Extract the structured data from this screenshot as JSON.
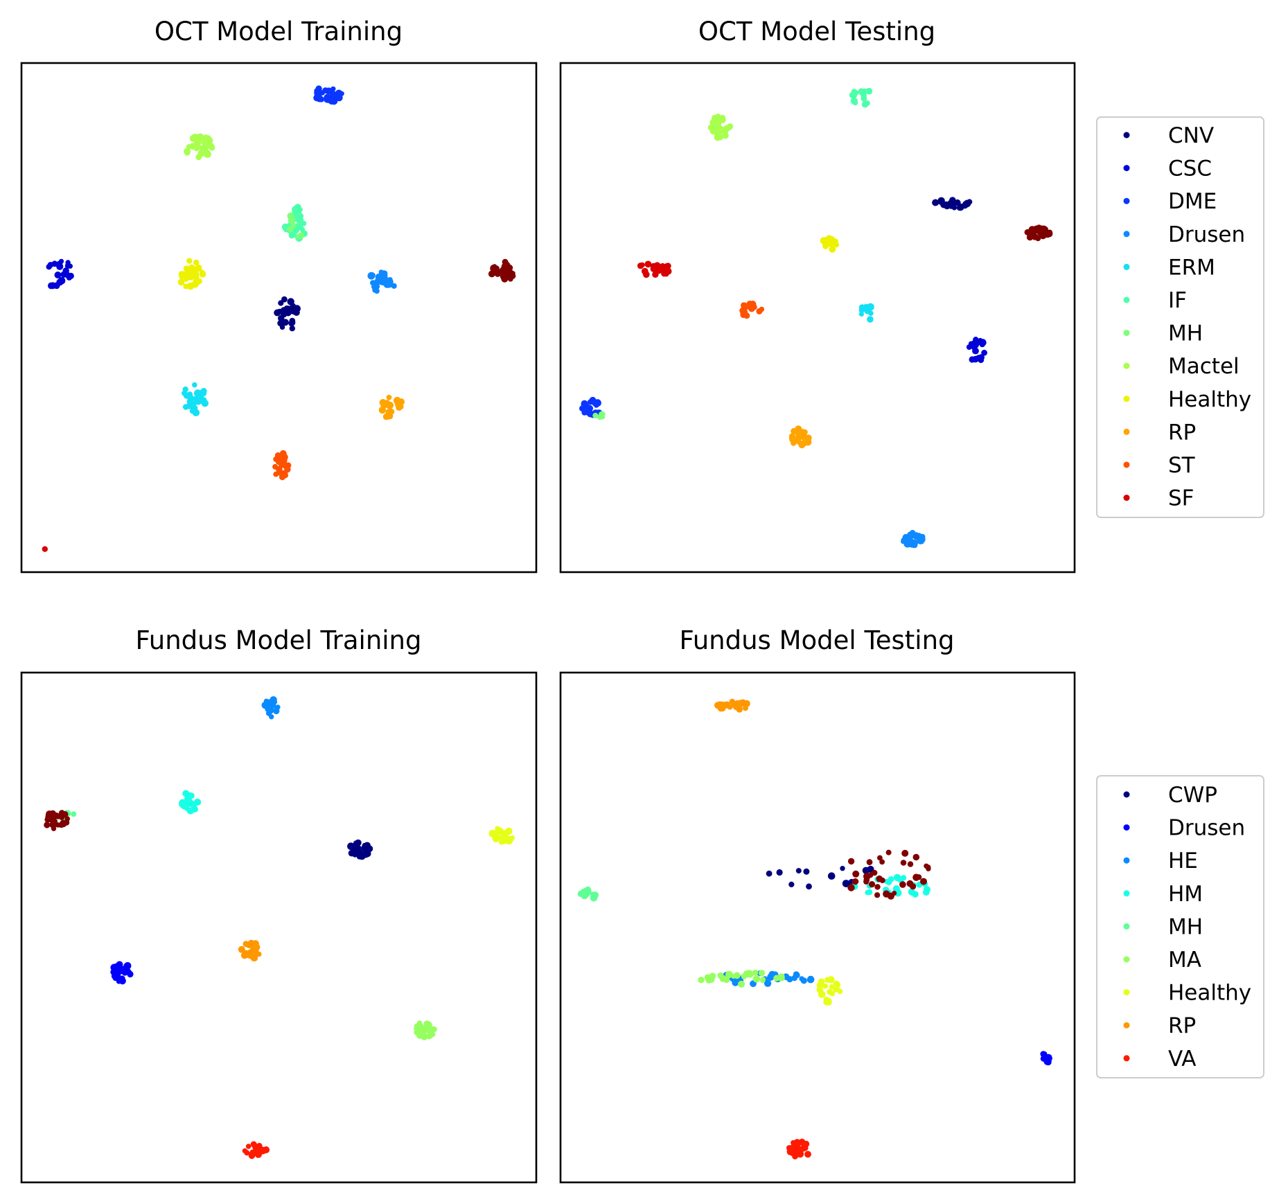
{
  "chart_data": [
    {
      "type": "scatter",
      "title": "OCT Model Training",
      "grid": false,
      "xlim": [
        0,
        100
      ],
      "ylim": [
        0,
        100
      ],
      "legend": "none",
      "clusters": [
        {
          "label": "CNV",
          "color": "#00007f",
          "center": [
            51.5,
            50.5
          ],
          "spread": [
            2.2,
            3.2
          ],
          "n": 26
        },
        {
          "label": "CSC",
          "color": "#0000d8",
          "center": [
            7.5,
            58.5
          ],
          "spread": [
            2.6,
            3.0
          ],
          "n": 24
        },
        {
          "label": "DME",
          "color": "#0a36ff",
          "center": [
            59.5,
            94.0
          ],
          "spread": [
            2.8,
            1.8
          ],
          "n": 26
        },
        {
          "label": "Drusen",
          "color": "#0f89ff",
          "center": [
            70.0,
            57.0
          ],
          "spread": [
            2.6,
            2.0
          ],
          "n": 24
        },
        {
          "label": "ERM",
          "color": "#14e0f5",
          "center": [
            33.5,
            34.0
          ],
          "spread": [
            2.4,
            2.8
          ],
          "n": 30
        },
        {
          "label": "IF",
          "color": "#4dffaa",
          "center": [
            53.5,
            68.5
          ],
          "spread": [
            2.4,
            3.4
          ],
          "n": 30
        },
        {
          "label": "MH",
          "color": "#7dff7a",
          "center": [
            53.5,
            68.5
          ],
          "spread": [
            1.8,
            2.8
          ],
          "n": 6
        },
        {
          "label": "Mactel",
          "color": "#a8ff4d",
          "center": [
            34.5,
            83.5
          ],
          "spread": [
            2.8,
            2.2
          ],
          "n": 30
        },
        {
          "label": "Healthy",
          "color": "#ecf200",
          "center": [
            33.0,
            58.5
          ],
          "spread": [
            2.4,
            2.8
          ],
          "n": 26
        },
        {
          "label": "RP",
          "color": "#ffa400",
          "center": [
            72.0,
            32.5
          ],
          "spread": [
            2.0,
            2.4
          ],
          "n": 22
        },
        {
          "label": "ST",
          "color": "#ff5200",
          "center": [
            50.5,
            21.0
          ],
          "spread": [
            1.8,
            2.6
          ],
          "n": 20
        },
        {
          "label": "SF",
          "color": "#d80000",
          "center": [
            4.5,
            4.5
          ],
          "spread": [
            0.1,
            0.1
          ],
          "n": 1
        },
        {
          "label": "",
          "color": "#7f0000",
          "center": [
            93.5,
            59.0
          ],
          "spread": [
            2.2,
            2.0
          ],
          "n": 30
        }
      ]
    },
    {
      "type": "scatter",
      "title": "OCT Model Testing",
      "grid": false,
      "xlim": [
        0,
        100
      ],
      "ylim": [
        0,
        100
      ],
      "legend": "right",
      "clusters": [
        {
          "label": "CNV",
          "color": "#00007f",
          "center": [
            76.5,
            72.5
          ],
          "spread": [
            3.8,
            1.0
          ],
          "n": 18
        },
        {
          "label": "CSC",
          "color": "#0000d8",
          "center": [
            81.0,
            43.5
          ],
          "spread": [
            1.6,
            2.4
          ],
          "n": 22
        },
        {
          "label": "DME",
          "color": "#0a36ff",
          "center": [
            6.0,
            32.0
          ],
          "spread": [
            1.8,
            1.8
          ],
          "n": 20
        },
        {
          "label": "Drusen",
          "color": "#0f89ff",
          "center": [
            68.5,
            6.5
          ],
          "spread": [
            2.0,
            1.4
          ],
          "n": 26
        },
        {
          "label": "ERM",
          "color": "#14e0f5",
          "center": [
            59.5,
            51.5
          ],
          "spread": [
            1.2,
            2.6
          ],
          "n": 8
        },
        {
          "label": "IF",
          "color": "#4dffaa",
          "center": [
            58.5,
            93.5
          ],
          "spread": [
            1.8,
            2.0
          ],
          "n": 14
        },
        {
          "label": "MH",
          "color": "#7dff7a",
          "center": [
            7.5,
            30.5
          ],
          "spread": [
            0.8,
            0.8
          ],
          "n": 4
        },
        {
          "label": "Mactel",
          "color": "#a8ff4d",
          "center": [
            31.0,
            87.5
          ],
          "spread": [
            2.0,
            2.2
          ],
          "n": 26
        },
        {
          "label": "Healthy",
          "color": "#ecf200",
          "center": [
            52.5,
            64.5
          ],
          "spread": [
            1.4,
            1.6
          ],
          "n": 12
        },
        {
          "label": "RP",
          "color": "#ffa400",
          "center": [
            46.5,
            26.5
          ],
          "spread": [
            2.0,
            1.6
          ],
          "n": 26
        },
        {
          "label": "ST",
          "color": "#ff5200",
          "center": [
            37.0,
            51.5
          ],
          "spread": [
            2.2,
            1.4
          ],
          "n": 16
        },
        {
          "label": "SF",
          "color": "#d80000",
          "center": [
            18.0,
            59.5
          ],
          "spread": [
            3.6,
            1.2
          ],
          "n": 22
        },
        {
          "label": "",
          "color": "#7f0000",
          "center": [
            93.0,
            66.5
          ],
          "spread": [
            2.6,
            1.2
          ],
          "n": 28
        }
      ],
      "legend_entries": [
        {
          "label": "CNV",
          "color": "#00007f"
        },
        {
          "label": "CSC",
          "color": "#0000d8"
        },
        {
          "label": "DME",
          "color": "#0a36ff"
        },
        {
          "label": "Drusen",
          "color": "#0f89ff"
        },
        {
          "label": "ERM",
          "color": "#14e0f5"
        },
        {
          "label": "IF",
          "color": "#4dffaa"
        },
        {
          "label": "MH",
          "color": "#7dff7a"
        },
        {
          "label": "Mactel",
          "color": "#a8ff4d"
        },
        {
          "label": "Healthy",
          "color": "#ecf200"
        },
        {
          "label": "RP",
          "color": "#ffa400"
        },
        {
          "label": "ST",
          "color": "#ff5200"
        },
        {
          "label": "SF",
          "color": "#d80000"
        }
      ]
    },
    {
      "type": "scatter",
      "title": "Fundus Model Training",
      "grid": false,
      "xlim": [
        0,
        100
      ],
      "ylim": [
        0,
        100
      ],
      "legend": "none",
      "clusters": [
        {
          "label": "CWP",
          "color": "#00007f",
          "center": [
            65.5,
            65.5
          ],
          "spread": [
            2.2,
            1.6
          ],
          "n": 24
        },
        {
          "label": "Drusen",
          "color": "#0000ff",
          "center": [
            19.5,
            41.0
          ],
          "spread": [
            2.0,
            1.8
          ],
          "n": 26
        },
        {
          "label": "HE",
          "color": "#0a8aff",
          "center": [
            48.5,
            93.0
          ],
          "spread": [
            1.4,
            2.0
          ],
          "n": 16
        },
        {
          "label": "HM",
          "color": "#19ffe6",
          "center": [
            32.5,
            74.5
          ],
          "spread": [
            1.8,
            2.0
          ],
          "n": 22
        },
        {
          "label": "MH",
          "color": "#60ff96",
          "center": [
            9.0,
            71.5
          ],
          "spread": [
            1.8,
            1.0
          ],
          "n": 6
        },
        {
          "label": "MA",
          "color": "#96ff60",
          "center": [
            78.5,
            30.0
          ],
          "spread": [
            2.0,
            1.6
          ],
          "n": 22
        },
        {
          "label": "Healthy",
          "color": "#e6ff19",
          "center": [
            93.5,
            68.0
          ],
          "spread": [
            2.2,
            1.6
          ],
          "n": 24
        },
        {
          "label": "RP",
          "color": "#ff9800",
          "center": [
            44.5,
            45.5
          ],
          "spread": [
            2.0,
            1.6
          ],
          "n": 22
        },
        {
          "label": "VA",
          "color": "#ff1a00",
          "center": [
            45.5,
            6.5
          ],
          "spread": [
            2.2,
            1.4
          ],
          "n": 20
        },
        {
          "label": "",
          "color": "#7f0000",
          "center": [
            7.0,
            71.0
          ],
          "spread": [
            2.4,
            1.8
          ],
          "n": 26
        }
      ]
    },
    {
      "type": "scatter",
      "title": "Fundus Model Testing",
      "grid": false,
      "xlim": [
        0,
        100
      ],
      "ylim": [
        0,
        100
      ],
      "legend": "right",
      "clusters": [
        {
          "label": "CWP",
          "color": "#00007f",
          "center": [
            50.5,
            60.0
          ],
          "spread": [
            14.0,
            2.0
          ],
          "n": 12
        },
        {
          "label": "Drusen",
          "color": "#0000ff",
          "center": [
            94.5,
            24.5
          ],
          "spread": [
            0.8,
            1.2
          ],
          "n": 10
        },
        {
          "label": "HE",
          "color": "#0a8aff",
          "center": [
            40.0,
            40.0
          ],
          "spread": [
            9.0,
            1.2
          ],
          "n": 22
        },
        {
          "label": "HM",
          "color": "#19ffe6",
          "center": [
            65.0,
            58.0
          ],
          "spread": [
            8.0,
            1.8
          ],
          "n": 26
        },
        {
          "label": "MH",
          "color": "#60ff96",
          "center": [
            5.5,
            56.5
          ],
          "spread": [
            1.6,
            1.0
          ],
          "n": 16
        },
        {
          "label": "MA",
          "color": "#96ff60",
          "center": [
            36.0,
            40.0
          ],
          "spread": [
            9.0,
            1.2
          ],
          "n": 26
        },
        {
          "label": "Healthy",
          "color": "#e6ff19",
          "center": [
            52.0,
            37.5
          ],
          "spread": [
            2.4,
            2.4
          ],
          "n": 20
        },
        {
          "label": "RP",
          "color": "#ff9800",
          "center": [
            33.5,
            93.5
          ],
          "spread": [
            3.2,
            0.8
          ],
          "n": 22
        },
        {
          "label": "VA",
          "color": "#ff1a00",
          "center": [
            46.5,
            6.5
          ],
          "spread": [
            2.4,
            1.6
          ],
          "n": 24
        },
        {
          "label": "",
          "color": "#7f0000",
          "center": [
            63.0,
            60.5
          ],
          "spread": [
            9.0,
            5.0
          ],
          "n": 34
        }
      ],
      "legend_entries": [
        {
          "label": "CWP",
          "color": "#00007f"
        },
        {
          "label": "Drusen",
          "color": "#0000ff"
        },
        {
          "label": "HE",
          "color": "#0a8aff"
        },
        {
          "label": "HM",
          "color": "#19ffe6"
        },
        {
          "label": "MH",
          "color": "#60ff96"
        },
        {
          "label": "MA",
          "color": "#96ff60"
        },
        {
          "label": "Healthy",
          "color": "#e6ff19"
        },
        {
          "label": "RP",
          "color": "#ff9800"
        },
        {
          "label": "VA",
          "color": "#ff1a00"
        }
      ]
    }
  ]
}
